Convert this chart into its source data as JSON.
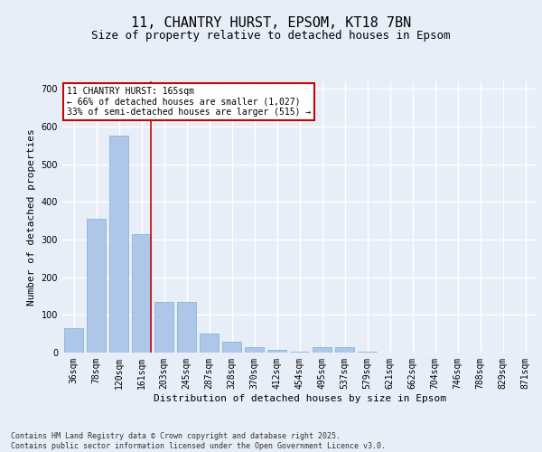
{
  "title1": "11, CHANTRY HURST, EPSOM, KT18 7BN",
  "title2": "Size of property relative to detached houses in Epsom",
  "xlabel": "Distribution of detached houses by size in Epsom",
  "ylabel": "Number of detached properties",
  "categories": [
    "36sqm",
    "78sqm",
    "120sqm",
    "161sqm",
    "203sqm",
    "245sqm",
    "287sqm",
    "328sqm",
    "370sqm",
    "412sqm",
    "454sqm",
    "495sqm",
    "537sqm",
    "579sqm",
    "621sqm",
    "662sqm",
    "704sqm",
    "746sqm",
    "788sqm",
    "829sqm",
    "871sqm"
  ],
  "values": [
    65,
    355,
    575,
    315,
    135,
    135,
    50,
    30,
    15,
    8,
    3,
    15,
    15,
    2,
    1,
    0,
    0,
    0,
    0,
    0,
    0
  ],
  "bar_color": "#aec6e8",
  "bar_edge_color": "#7aafd4",
  "highlight_line_index": 3,
  "annotation_text": "11 CHANTRY HURST: 165sqm\n← 66% of detached houses are smaller (1,027)\n33% of semi-detached houses are larger (515) →",
  "annotation_box_color": "#ffffff",
  "annotation_box_edge": "#cc0000",
  "highlight_line_color": "#cc0000",
  "ylim": [
    0,
    720
  ],
  "yticks": [
    0,
    100,
    200,
    300,
    400,
    500,
    600,
    700
  ],
  "footer": "Contains HM Land Registry data © Crown copyright and database right 2025.\nContains public sector information licensed under the Open Government Licence v3.0.",
  "bg_color": "#e8eef7",
  "plot_bg_color": "#e8eef7",
  "grid_color": "#ffffff",
  "title_fontsize": 11,
  "subtitle_fontsize": 9,
  "axis_label_fontsize": 8,
  "tick_fontsize": 7,
  "annotation_fontsize": 7,
  "footer_fontsize": 6
}
